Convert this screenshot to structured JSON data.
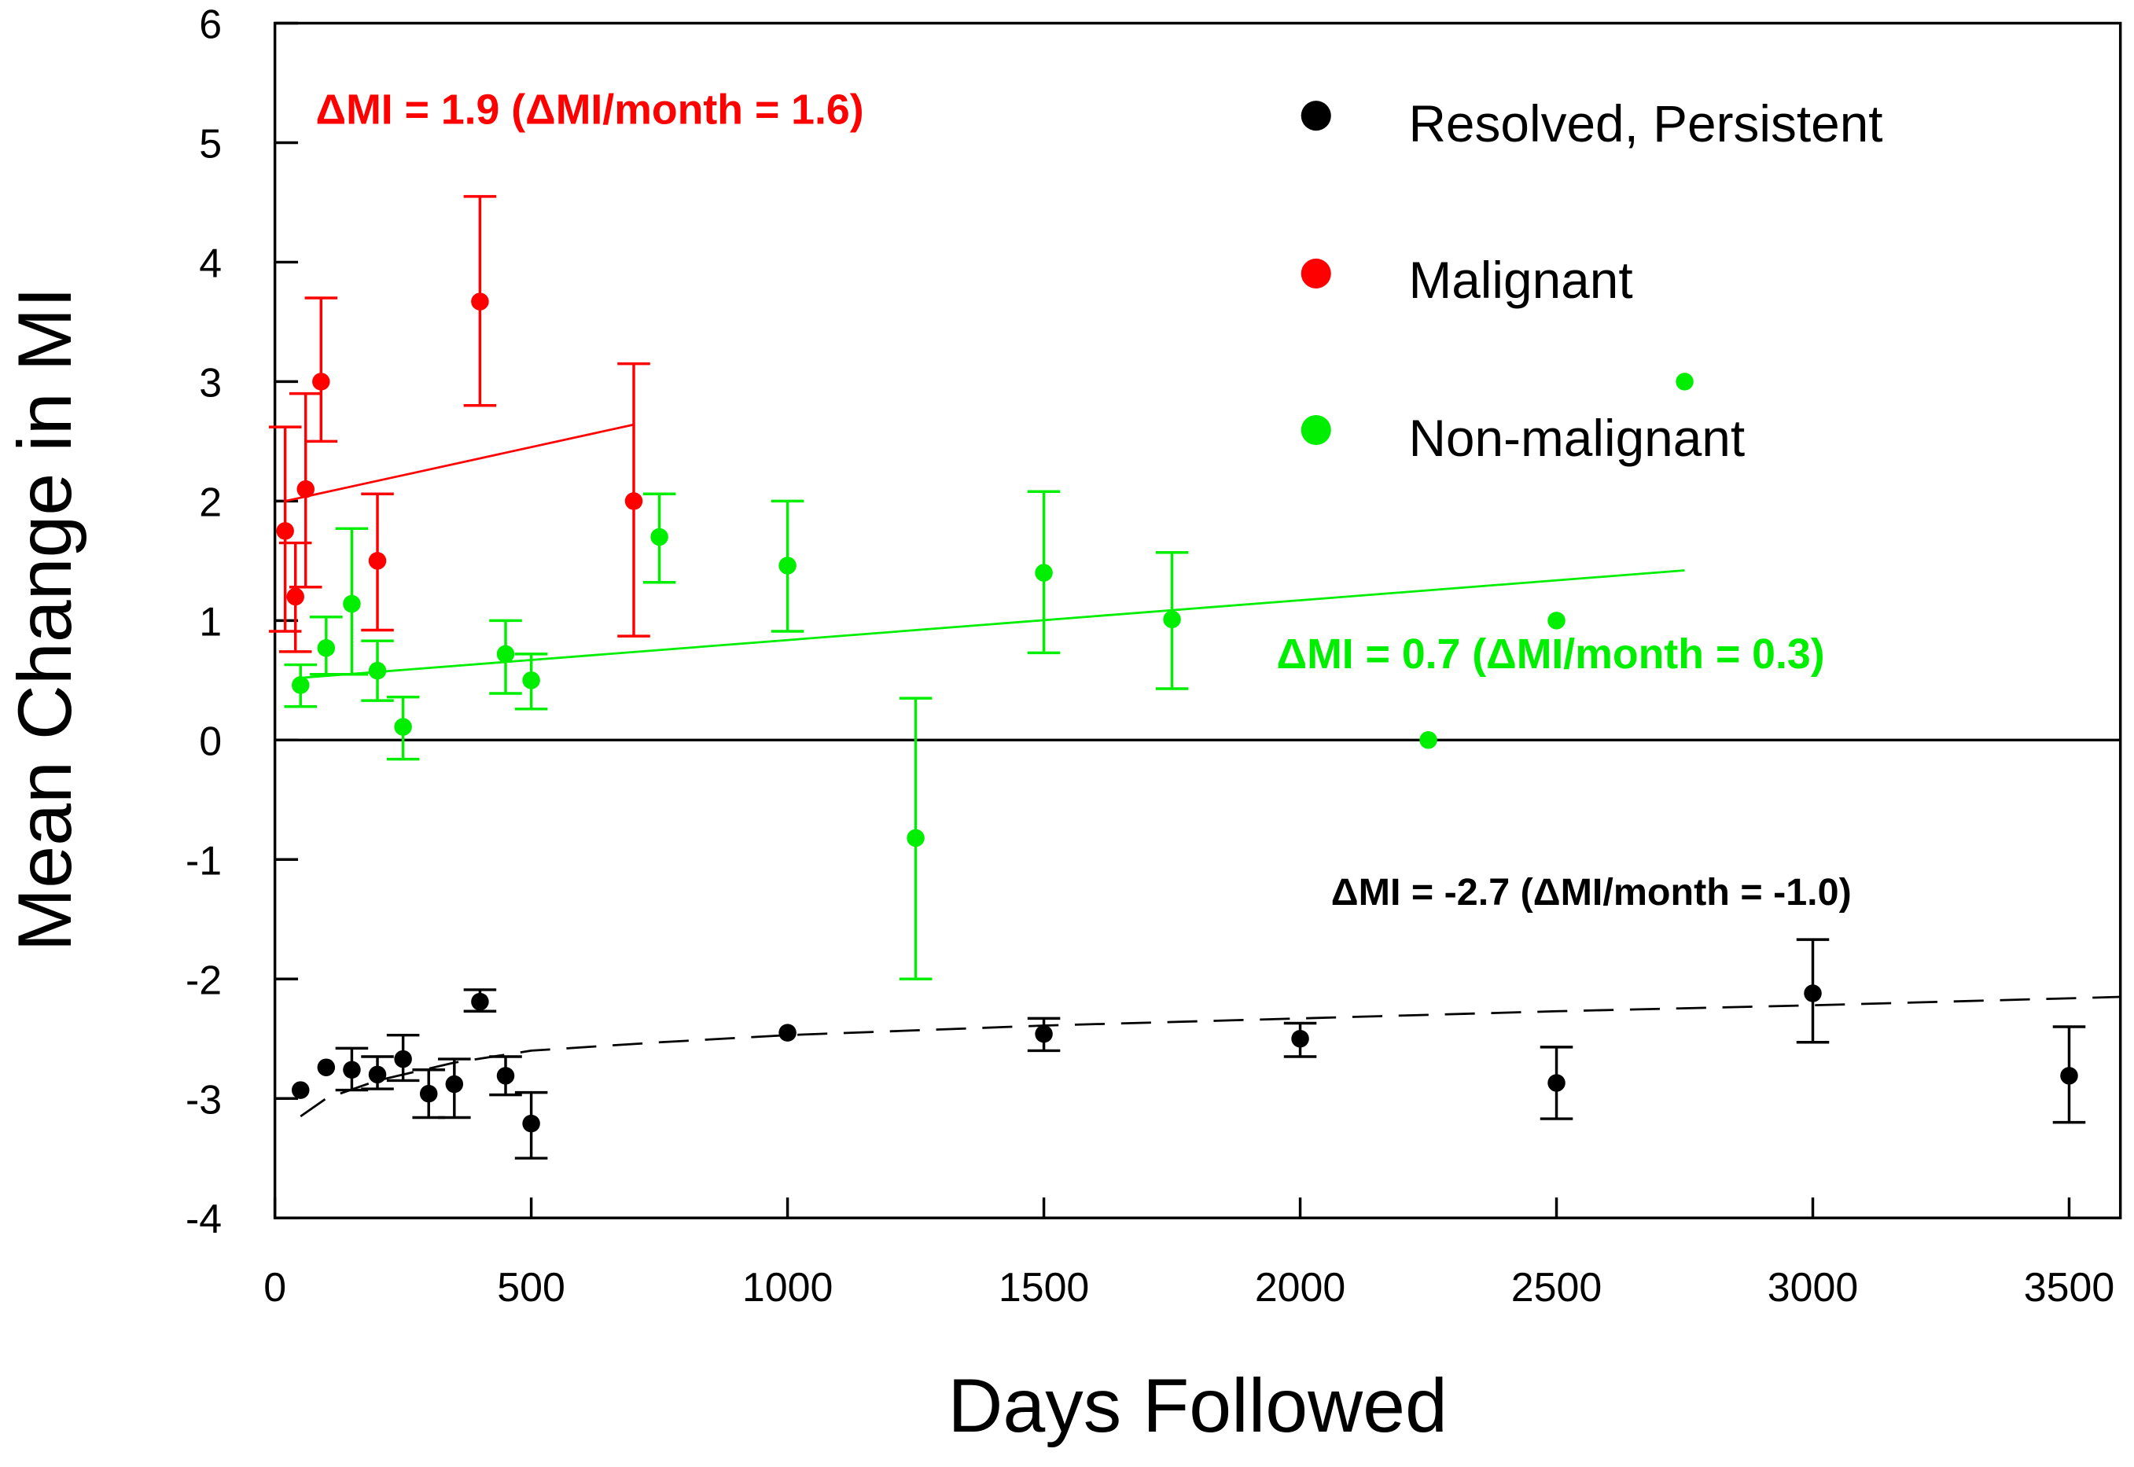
{
  "chart_data": {
    "type": "scatter",
    "xlabel": "Days Followed",
    "ylabel": "Mean Change in MI",
    "xlim": [
      0,
      3600
    ],
    "ylim": [
      -4,
      6
    ],
    "xticks": [
      0,
      500,
      1000,
      1500,
      2000,
      2500,
      3000,
      3500
    ],
    "yticks": [
      -4,
      -3,
      -2,
      -1,
      0,
      1,
      2,
      3,
      4,
      5,
      6
    ],
    "grid": false,
    "legend_position": "top-right",
    "series": [
      {
        "name": "Resolved, Persistent",
        "color": "#000000",
        "points": [
          {
            "x": 50,
            "y": -2.93
          },
          {
            "x": 100,
            "y": -2.74
          },
          {
            "x": 150,
            "y": -2.76,
            "hi": -2.58,
            "lo": -2.93
          },
          {
            "x": 200,
            "y": -2.8,
            "hi": -2.65,
            "lo": -2.92
          },
          {
            "x": 250,
            "y": -2.67,
            "hi": -2.47,
            "lo": -2.85
          },
          {
            "x": 300,
            "y": -2.96,
            "hi": -2.76,
            "lo": -3.16
          },
          {
            "x": 350,
            "y": -2.88,
            "hi": -2.67,
            "lo": -3.16
          },
          {
            "x": 400,
            "y": -2.19,
            "hi": -2.09,
            "lo": -2.27
          },
          {
            "x": 450,
            "y": -2.81,
            "hi": -2.65,
            "lo": -2.97
          },
          {
            "x": 500,
            "y": -3.21,
            "hi": -2.95,
            "lo": -3.5
          },
          {
            "x": 1000,
            "y": -2.45
          },
          {
            "x": 1500,
            "y": -2.46,
            "hi": -2.33,
            "lo": -2.6
          },
          {
            "x": 2000,
            "y": -2.5,
            "hi": -2.37,
            "lo": -2.65
          },
          {
            "x": 2500,
            "y": -2.87,
            "hi": -2.57,
            "lo": -3.17
          },
          {
            "x": 3000,
            "y": -2.12,
            "hi": -1.67,
            "lo": -2.53
          },
          {
            "x": 3500,
            "y": -2.81,
            "hi": -2.4,
            "lo": -3.2
          }
        ],
        "fit": {
          "style": "dashed",
          "points": [
            [
              50,
              -3.15
            ],
            [
              100,
              -3.0
            ],
            [
              200,
              -2.85
            ],
            [
              350,
              -2.7
            ],
            [
              500,
              -2.6
            ],
            [
              750,
              -2.53
            ],
            [
              1000,
              -2.47
            ],
            [
              1500,
              -2.39
            ],
            [
              2000,
              -2.33
            ],
            [
              2500,
              -2.27
            ],
            [
              3000,
              -2.22
            ],
            [
              3600,
              -2.15
            ]
          ]
        },
        "annotation": "ΔMI = -2.7 (ΔMI/month = -1.0)"
      },
      {
        "name": "Malignant",
        "color": "#ff0000",
        "points": [
          {
            "x": 20,
            "y": 1.75,
            "hi": 2.62,
            "lo": 0.91
          },
          {
            "x": 40,
            "y": 1.2,
            "hi": 1.65,
            "lo": 0.74
          },
          {
            "x": 60,
            "y": 2.1,
            "hi": 2.9,
            "lo": 1.28
          },
          {
            "x": 90,
            "y": 3.0,
            "hi": 3.7,
            "lo": 2.5
          },
          {
            "x": 200,
            "y": 1.5,
            "hi": 2.06,
            "lo": 0.92
          },
          {
            "x": 400,
            "y": 3.67,
            "hi": 4.55,
            "lo": 2.8
          },
          {
            "x": 700,
            "y": 2.0,
            "hi": 3.15,
            "lo": 0.87
          }
        ],
        "fit": {
          "style": "solid",
          "points": [
            [
              20,
              2.0
            ],
            [
              700,
              2.64
            ]
          ]
        },
        "annotation": "ΔMI = 1.9 (ΔMI/month = 1.6)"
      },
      {
        "name": "Non-malignant",
        "color": "#00ee00",
        "points": [
          {
            "x": 50,
            "y": 0.46,
            "hi": 0.63,
            "lo": 0.28
          },
          {
            "x": 100,
            "y": 0.77,
            "hi": 1.03,
            "lo": 0.55
          },
          {
            "x": 150,
            "y": 1.14,
            "hi": 1.77,
            "lo": 0.55
          },
          {
            "x": 200,
            "y": 0.58,
            "hi": 0.83,
            "lo": 0.33
          },
          {
            "x": 250,
            "y": 0.11,
            "hi": 0.36,
            "lo": -0.16
          },
          {
            "x": 450,
            "y": 0.72,
            "hi": 1.0,
            "lo": 0.39
          },
          {
            "x": 500,
            "y": 0.5,
            "hi": 0.72,
            "lo": 0.26
          },
          {
            "x": 750,
            "y": 1.7,
            "hi": 2.06,
            "lo": 1.32
          },
          {
            "x": 1000,
            "y": 1.46,
            "hi": 2.0,
            "lo": 0.91
          },
          {
            "x": 1250,
            "y": -0.82,
            "hi": 0.35,
            "lo": -2.0
          },
          {
            "x": 1500,
            "y": 1.4,
            "hi": 2.08,
            "lo": 0.73
          },
          {
            "x": 1750,
            "y": 1.01,
            "hi": 1.57,
            "lo": 0.43
          },
          {
            "x": 2250,
            "y": 0.0
          },
          {
            "x": 2500,
            "y": 1.0
          },
          {
            "x": 2750,
            "y": 3.0
          }
        ],
        "fit": {
          "style": "solid",
          "points": [
            [
              50,
              0.52
            ],
            [
              2750,
              1.42
            ]
          ]
        },
        "annotation": "ΔMI = 0.7 (ΔMI/month = 0.3)"
      }
    ]
  }
}
